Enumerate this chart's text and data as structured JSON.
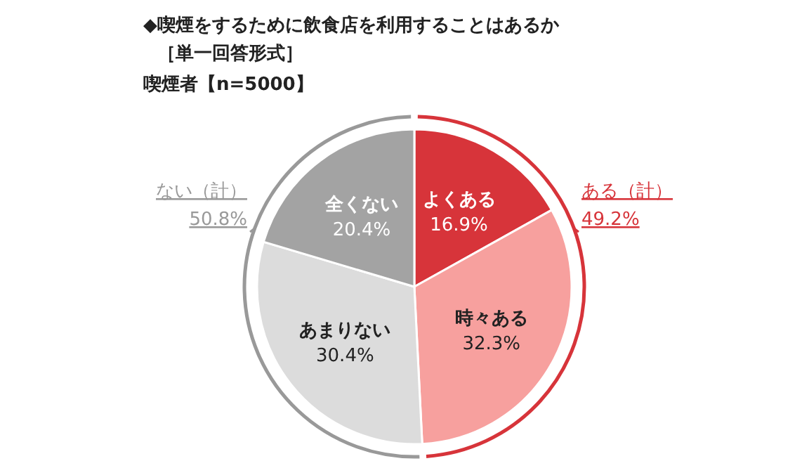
{
  "chart_data": {
    "type": "pie",
    "title": "◆喫煙をするために飲食店を利用することはあるか",
    "subtitle": "［単一回答形式］",
    "categories": [
      "よくある",
      "時々ある",
      "あまりない",
      "全くない"
    ],
    "values": [
      16.9,
      32.3,
      30.4,
      20.4
    ],
    "value_labels": [
      "16.9%",
      "32.3%",
      "30.4%",
      "20.4%"
    ],
    "colors": [
      "#d7343a",
      "#f7a09e",
      "#dcdcdc",
      "#a3a3a3"
    ],
    "annotations": [
      "喫煙者【n=5000】",
      "ある（計）",
      "49.2%",
      "ない（計）",
      "50.8%"
    ]
  }
}
